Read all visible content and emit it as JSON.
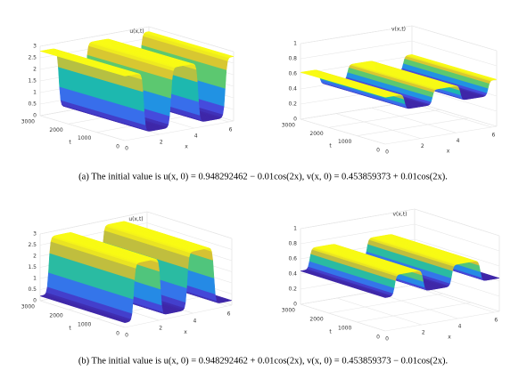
{
  "panels": [
    {
      "title": "u(x,t)",
      "profile": "ua",
      "zlim": [
        0,
        3
      ],
      "zticks": [
        0,
        0.5,
        1,
        1.5,
        2,
        2.5,
        3
      ],
      "tlim": [
        0,
        3000
      ],
      "tticks": [
        0,
        1000,
        2000,
        3000
      ],
      "xlim": [
        0,
        6.2832
      ],
      "xticks": [
        0,
        2,
        4,
        6
      ],
      "xlabel": "x",
      "tlabel": "t"
    },
    {
      "title": "v(x,t)",
      "profile": "va",
      "zlim": [
        0,
        1
      ],
      "zticks": [
        0,
        0.2,
        0.4,
        0.6,
        0.8,
        1
      ],
      "tlim": [
        0,
        3000
      ],
      "tticks": [
        0,
        1000,
        2000,
        3000
      ],
      "xlim": [
        0,
        6.2832
      ],
      "xticks": [
        0,
        2,
        4,
        6
      ],
      "xlabel": "x",
      "tlabel": "t"
    },
    {
      "title": "u(x,t)",
      "profile": "ub",
      "zlim": [
        0,
        3
      ],
      "zticks": [
        0,
        0.5,
        1,
        1.5,
        2,
        2.5,
        3
      ],
      "tlim": [
        0,
        3000
      ],
      "tticks": [
        0,
        1000,
        2000,
        3000
      ],
      "xlim": [
        0,
        6.2832
      ],
      "xticks": [
        0,
        2,
        4,
        6
      ],
      "xlabel": "x",
      "tlabel": "t"
    },
    {
      "title": "v(x,t)",
      "profile": "vb",
      "zlim": [
        0,
        1
      ],
      "zticks": [
        0,
        0.2,
        0.4,
        0.6,
        0.8,
        1
      ],
      "tlim": [
        0,
        3000
      ],
      "tticks": [
        0,
        1000,
        2000,
        3000
      ],
      "xlim": [
        0,
        6.2832
      ],
      "xticks": [
        0,
        2,
        4,
        6
      ],
      "xlabel": "x",
      "tlabel": "t"
    }
  ],
  "captions": [
    "(a) The initial value is u(x, 0) = 0.948292462 − 0.01cos(2x), v(x, 0) = 0.453859373 + 0.01cos(2x).",
    "(b) The initial value is u(x, 0) = 0.948292462 + 0.01cos(2x), v(x, 0) = 0.453859373 − 0.01cos(2x)."
  ]
}
